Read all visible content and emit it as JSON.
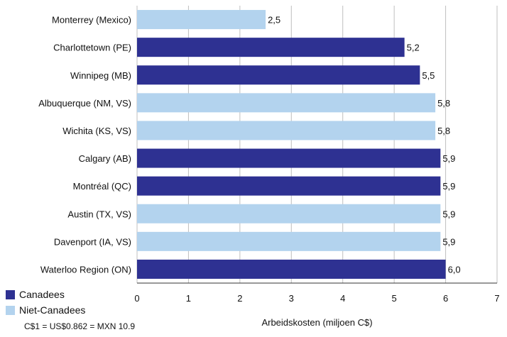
{
  "chart_data": {
    "type": "bar",
    "orientation": "horizontal",
    "categories": [
      "Monterrey (Mexico)",
      "Charlottetown (PE)",
      "Winnipeg (MB)",
      "Albuquerque (NM, VS)",
      "Wichita (KS, VS)",
      "Calgary (AB)",
      "Montréal (QC)",
      "Austin (TX, VS)",
      "Davenport (IA, VS)",
      "Waterloo Region (ON)"
    ],
    "values": [
      2.5,
      5.2,
      5.5,
      5.8,
      5.8,
      5.9,
      5.9,
      5.9,
      5.9,
      6.0
    ],
    "value_labels": [
      "2,5",
      "5,2",
      "5,5",
      "5,8",
      "5,8",
      "5,9",
      "5,9",
      "5,9",
      "5,9",
      "6,0"
    ],
    "groups": [
      "Niet-Canadees",
      "Canadees",
      "Canadees",
      "Niet-Canadees",
      "Niet-Canadees",
      "Canadees",
      "Canadees",
      "Niet-Canadees",
      "Niet-Canadees",
      "Canadees"
    ],
    "xlabel": "Arbeidskosten (miljoen C$)",
    "xlim": [
      0,
      7
    ],
    "xticks": [
      0,
      1,
      2,
      3,
      4,
      5,
      6,
      7
    ],
    "grid": true,
    "legend": {
      "placement": "bottom-left",
      "entries": [
        {
          "name": "Canadees",
          "color": "#2e3192"
        },
        {
          "name": "Niet-Canadees",
          "color": "#b3d3ee"
        }
      ]
    },
    "colors": {
      "Canadees": "#2e3192",
      "Niet-Canadees": "#b3d3ee"
    }
  },
  "footnote": "C$1 = US$0.862 = MXN 10.9"
}
